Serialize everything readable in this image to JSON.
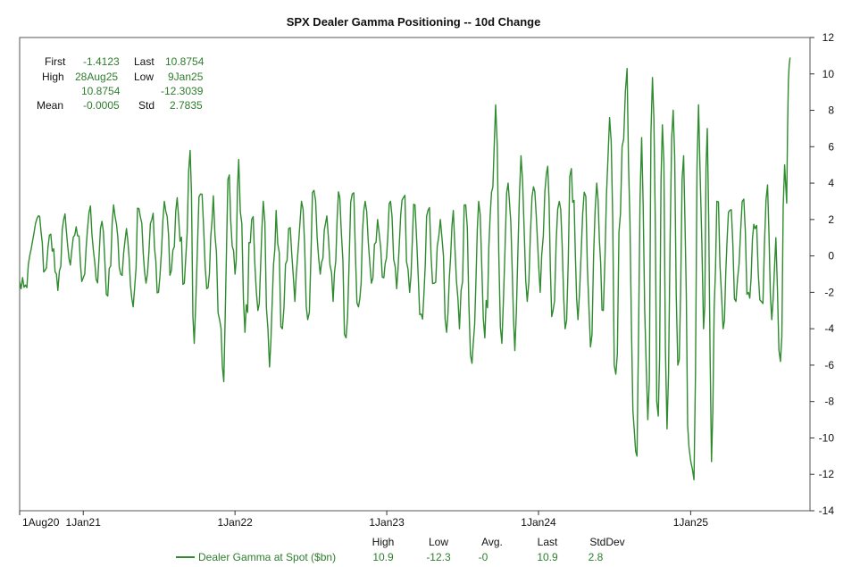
{
  "chart_data": {
    "type": "line",
    "title": "SPX Dealer Gamma Positioning -- 10d Change",
    "ylim": [
      -14,
      12
    ],
    "y_ticks": [
      12,
      10,
      8,
      6,
      4,
      2,
      0,
      -2,
      -4,
      -6,
      -8,
      -10,
      -12,
      -14
    ],
    "x_range": [
      "2020-08-01",
      "2025-10-15"
    ],
    "x_ticks": [
      {
        "date": "2020-08-01",
        "label": "1Aug20"
      },
      {
        "date": "2021-01-01",
        "label": "1Jan21"
      },
      {
        "date": "2022-01-01",
        "label": "1Jan22"
      },
      {
        "date": "2023-01-01",
        "label": "1Jan23"
      },
      {
        "date": "2024-01-01",
        "label": "1Jan24"
      },
      {
        "date": "2025-01-01",
        "label": "1Jan25"
      }
    ],
    "grid": false,
    "color": "#2e8b2e",
    "series": [
      {
        "name": "Dealer Gamma at Spot ($bn)",
        "points": [
          [
            "2020-08-01",
            -1.4
          ],
          [
            "2020-08-15",
            -1.6
          ],
          [
            "2020-09-01",
            0.8
          ],
          [
            "2020-09-15",
            2.2
          ],
          [
            "2020-10-01",
            -0.8
          ],
          [
            "2020-10-15",
            1.2
          ],
          [
            "2020-11-01",
            -1.9
          ],
          [
            "2020-11-15",
            2.0
          ],
          [
            "2020-12-01",
            -0.5
          ],
          [
            "2020-12-15",
            1.6
          ],
          [
            "2021-01-01",
            -1.2
          ],
          [
            "2021-01-15",
            2.4
          ],
          [
            "2021-02-01",
            -1.3
          ],
          [
            "2021-02-15",
            1.9
          ],
          [
            "2021-03-01",
            -2.2
          ],
          [
            "2021-03-15",
            2.8
          ],
          [
            "2021-04-01",
            -1.0
          ],
          [
            "2021-04-15",
            1.5
          ],
          [
            "2021-05-01",
            -2.8
          ],
          [
            "2021-05-15",
            2.6
          ],
          [
            "2021-06-01",
            -1.5
          ],
          [
            "2021-06-15",
            2.0
          ],
          [
            "2021-07-01",
            -2.0
          ],
          [
            "2021-07-15",
            3.0
          ],
          [
            "2021-08-01",
            -0.8
          ],
          [
            "2021-08-15",
            3.2
          ],
          [
            "2021-09-01",
            -1.5
          ],
          [
            "2021-09-15",
            5.8
          ],
          [
            "2021-09-25",
            -4.8
          ],
          [
            "2021-10-10",
            3.4
          ],
          [
            "2021-10-25",
            -1.8
          ],
          [
            "2021-11-10",
            3.3
          ],
          [
            "2021-11-25",
            -3.5
          ],
          [
            "2021-12-05",
            -6.9
          ],
          [
            "2021-12-15",
            4.2
          ],
          [
            "2022-01-01",
            -1.0
          ],
          [
            "2022-01-10",
            5.3
          ],
          [
            "2022-01-25",
            -4.2
          ],
          [
            "2022-02-10",
            2.0
          ],
          [
            "2022-02-25",
            -3.0
          ],
          [
            "2022-03-10",
            3.0
          ],
          [
            "2022-03-25",
            -6.1
          ],
          [
            "2022-04-10",
            2.5
          ],
          [
            "2022-04-25",
            -4.0
          ],
          [
            "2022-05-10",
            1.5
          ],
          [
            "2022-05-25",
            -2.5
          ],
          [
            "2022-06-10",
            3.0
          ],
          [
            "2022-06-25",
            -3.5
          ],
          [
            "2022-07-10",
            3.6
          ],
          [
            "2022-07-25",
            -1.0
          ],
          [
            "2022-08-10",
            2.2
          ],
          [
            "2022-08-25",
            -2.5
          ],
          [
            "2022-09-10",
            3.2
          ],
          [
            "2022-09-25",
            -4.5
          ],
          [
            "2022-10-10",
            3.4
          ],
          [
            "2022-10-25",
            -2.8
          ],
          [
            "2022-11-10",
            3.0
          ],
          [
            "2022-11-25",
            -1.5
          ],
          [
            "2022-12-10",
            2.0
          ],
          [
            "2022-12-25",
            -1.2
          ],
          [
            "2023-01-10",
            3.0
          ],
          [
            "2023-01-25",
            -1.8
          ],
          [
            "2023-02-10",
            3.2
          ],
          [
            "2023-02-25",
            -2.0
          ],
          [
            "2023-03-10",
            2.8
          ],
          [
            "2023-03-25",
            -3.2
          ],
          [
            "2023-04-10",
            2.5
          ],
          [
            "2023-04-25",
            -1.5
          ],
          [
            "2023-05-10",
            2.0
          ],
          [
            "2023-05-25",
            -4.2
          ],
          [
            "2023-06-10",
            2.5
          ],
          [
            "2023-06-25",
            -4.0
          ],
          [
            "2023-07-10",
            2.8
          ],
          [
            "2023-07-25",
            -5.9
          ],
          [
            "2023-08-10",
            3.0
          ],
          [
            "2023-08-25",
            -4.5
          ],
          [
            "2023-09-10",
            3.5
          ],
          [
            "2023-09-20",
            8.3
          ],
          [
            "2023-10-05",
            -4.8
          ],
          [
            "2023-10-20",
            4.0
          ],
          [
            "2023-11-05",
            -5.2
          ],
          [
            "2023-11-20",
            5.5
          ],
          [
            "2023-12-05",
            -2.5
          ],
          [
            "2023-12-20",
            3.8
          ],
          [
            "2024-01-05",
            -2.0
          ],
          [
            "2024-01-20",
            4.5
          ],
          [
            "2024-02-05",
            -3.0
          ],
          [
            "2024-02-20",
            3.0
          ],
          [
            "2024-03-05",
            -4.0
          ],
          [
            "2024-03-20",
            4.8
          ],
          [
            "2024-04-05",
            -3.5
          ],
          [
            "2024-04-20",
            3.5
          ],
          [
            "2024-05-05",
            -5.0
          ],
          [
            "2024-05-20",
            4.0
          ],
          [
            "2024-06-05",
            -3.0
          ],
          [
            "2024-06-20",
            7.6
          ],
          [
            "2024-07-05",
            -6.5
          ],
          [
            "2024-07-20",
            6.0
          ],
          [
            "2024-08-01",
            10.3
          ],
          [
            "2024-08-15",
            -8.5
          ],
          [
            "2024-08-25",
            -11.0
          ],
          [
            "2024-09-05",
            6.5
          ],
          [
            "2024-09-20",
            -9.0
          ],
          [
            "2024-10-01",
            9.8
          ],
          [
            "2024-10-15",
            -8.8
          ],
          [
            "2024-10-25",
            7.2
          ],
          [
            "2024-11-05",
            -9.5
          ],
          [
            "2024-11-20",
            8.0
          ],
          [
            "2024-12-01",
            -6.0
          ],
          [
            "2024-12-15",
            5.5
          ],
          [
            "2024-12-28",
            -10.5
          ],
          [
            "2025-01-09",
            -12.3
          ],
          [
            "2025-01-20",
            8.3
          ],
          [
            "2025-02-01",
            -4.0
          ],
          [
            "2025-02-10",
            7.0
          ],
          [
            "2025-02-20",
            -11.3
          ],
          [
            "2025-03-05",
            3.0
          ],
          [
            "2025-03-20",
            -4.0
          ],
          [
            "2025-04-05",
            2.5
          ],
          [
            "2025-04-20",
            -2.5
          ],
          [
            "2025-05-05",
            3.0
          ],
          [
            "2025-05-20",
            -2.0
          ],
          [
            "2025-06-05",
            1.5
          ],
          [
            "2025-06-20",
            -2.5
          ],
          [
            "2025-07-05",
            3.9
          ],
          [
            "2025-07-15",
            -3.5
          ],
          [
            "2025-07-25",
            1.0
          ],
          [
            "2025-08-05",
            -5.8
          ],
          [
            "2025-08-15",
            5.0
          ],
          [
            "2025-08-20",
            2.9
          ],
          [
            "2025-08-24",
            9.6
          ],
          [
            "2025-08-28",
            10.9
          ]
        ]
      }
    ]
  },
  "stats_box": {
    "first_label": "First",
    "first_value": "-1.4123",
    "last_label": "Last",
    "last_value": "10.8754",
    "high_label": "High",
    "high_date": "28Aug25",
    "low_label": "Low",
    "low_date": "9Jan25",
    "high_value": "10.8754",
    "low_value": "-12.3039",
    "mean_label": "Mean",
    "mean_value": "-0.0005",
    "std_label": "Std",
    "std_value": "2.7835"
  },
  "legend": {
    "series_label": "Dealer Gamma at Spot ($bn)",
    "headers": [
      "High",
      "Low",
      "Avg.",
      "Last",
      "StdDev"
    ],
    "values": [
      "10.9",
      "-12.3",
      "-0",
      "10.9",
      "2.8"
    ]
  }
}
